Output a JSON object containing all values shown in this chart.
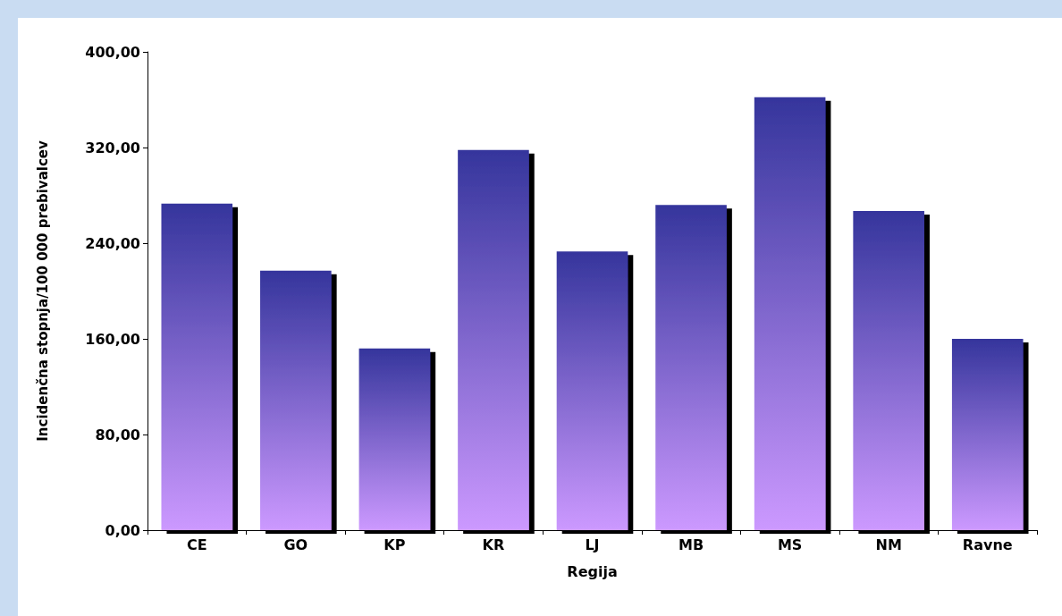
{
  "chart_data": {
    "type": "bar",
    "xlabel": "Regija",
    "ylabel": "Incidenčna stopnja/100 000 prebivalcev",
    "categories": [
      "CE",
      "GO",
      "KP",
      "KR",
      "LJ",
      "MB",
      "MS",
      "NM",
      "Ravne"
    ],
    "values": [
      273,
      217,
      152,
      318,
      233,
      272,
      362,
      267,
      160
    ],
    "color": "#35359c",
    "ylim": [
      0,
      400
    ],
    "yticks": [
      {
        "value": 0,
        "label": "0,00"
      },
      {
        "value": 80,
        "label": "80,00"
      },
      {
        "value": 160,
        "label": "160,00"
      },
      {
        "value": 240,
        "label": "240,00"
      },
      {
        "value": 320,
        "label": "320,00"
      },
      {
        "value": 400,
        "label": "400,00"
      }
    ],
    "grid": false
  }
}
